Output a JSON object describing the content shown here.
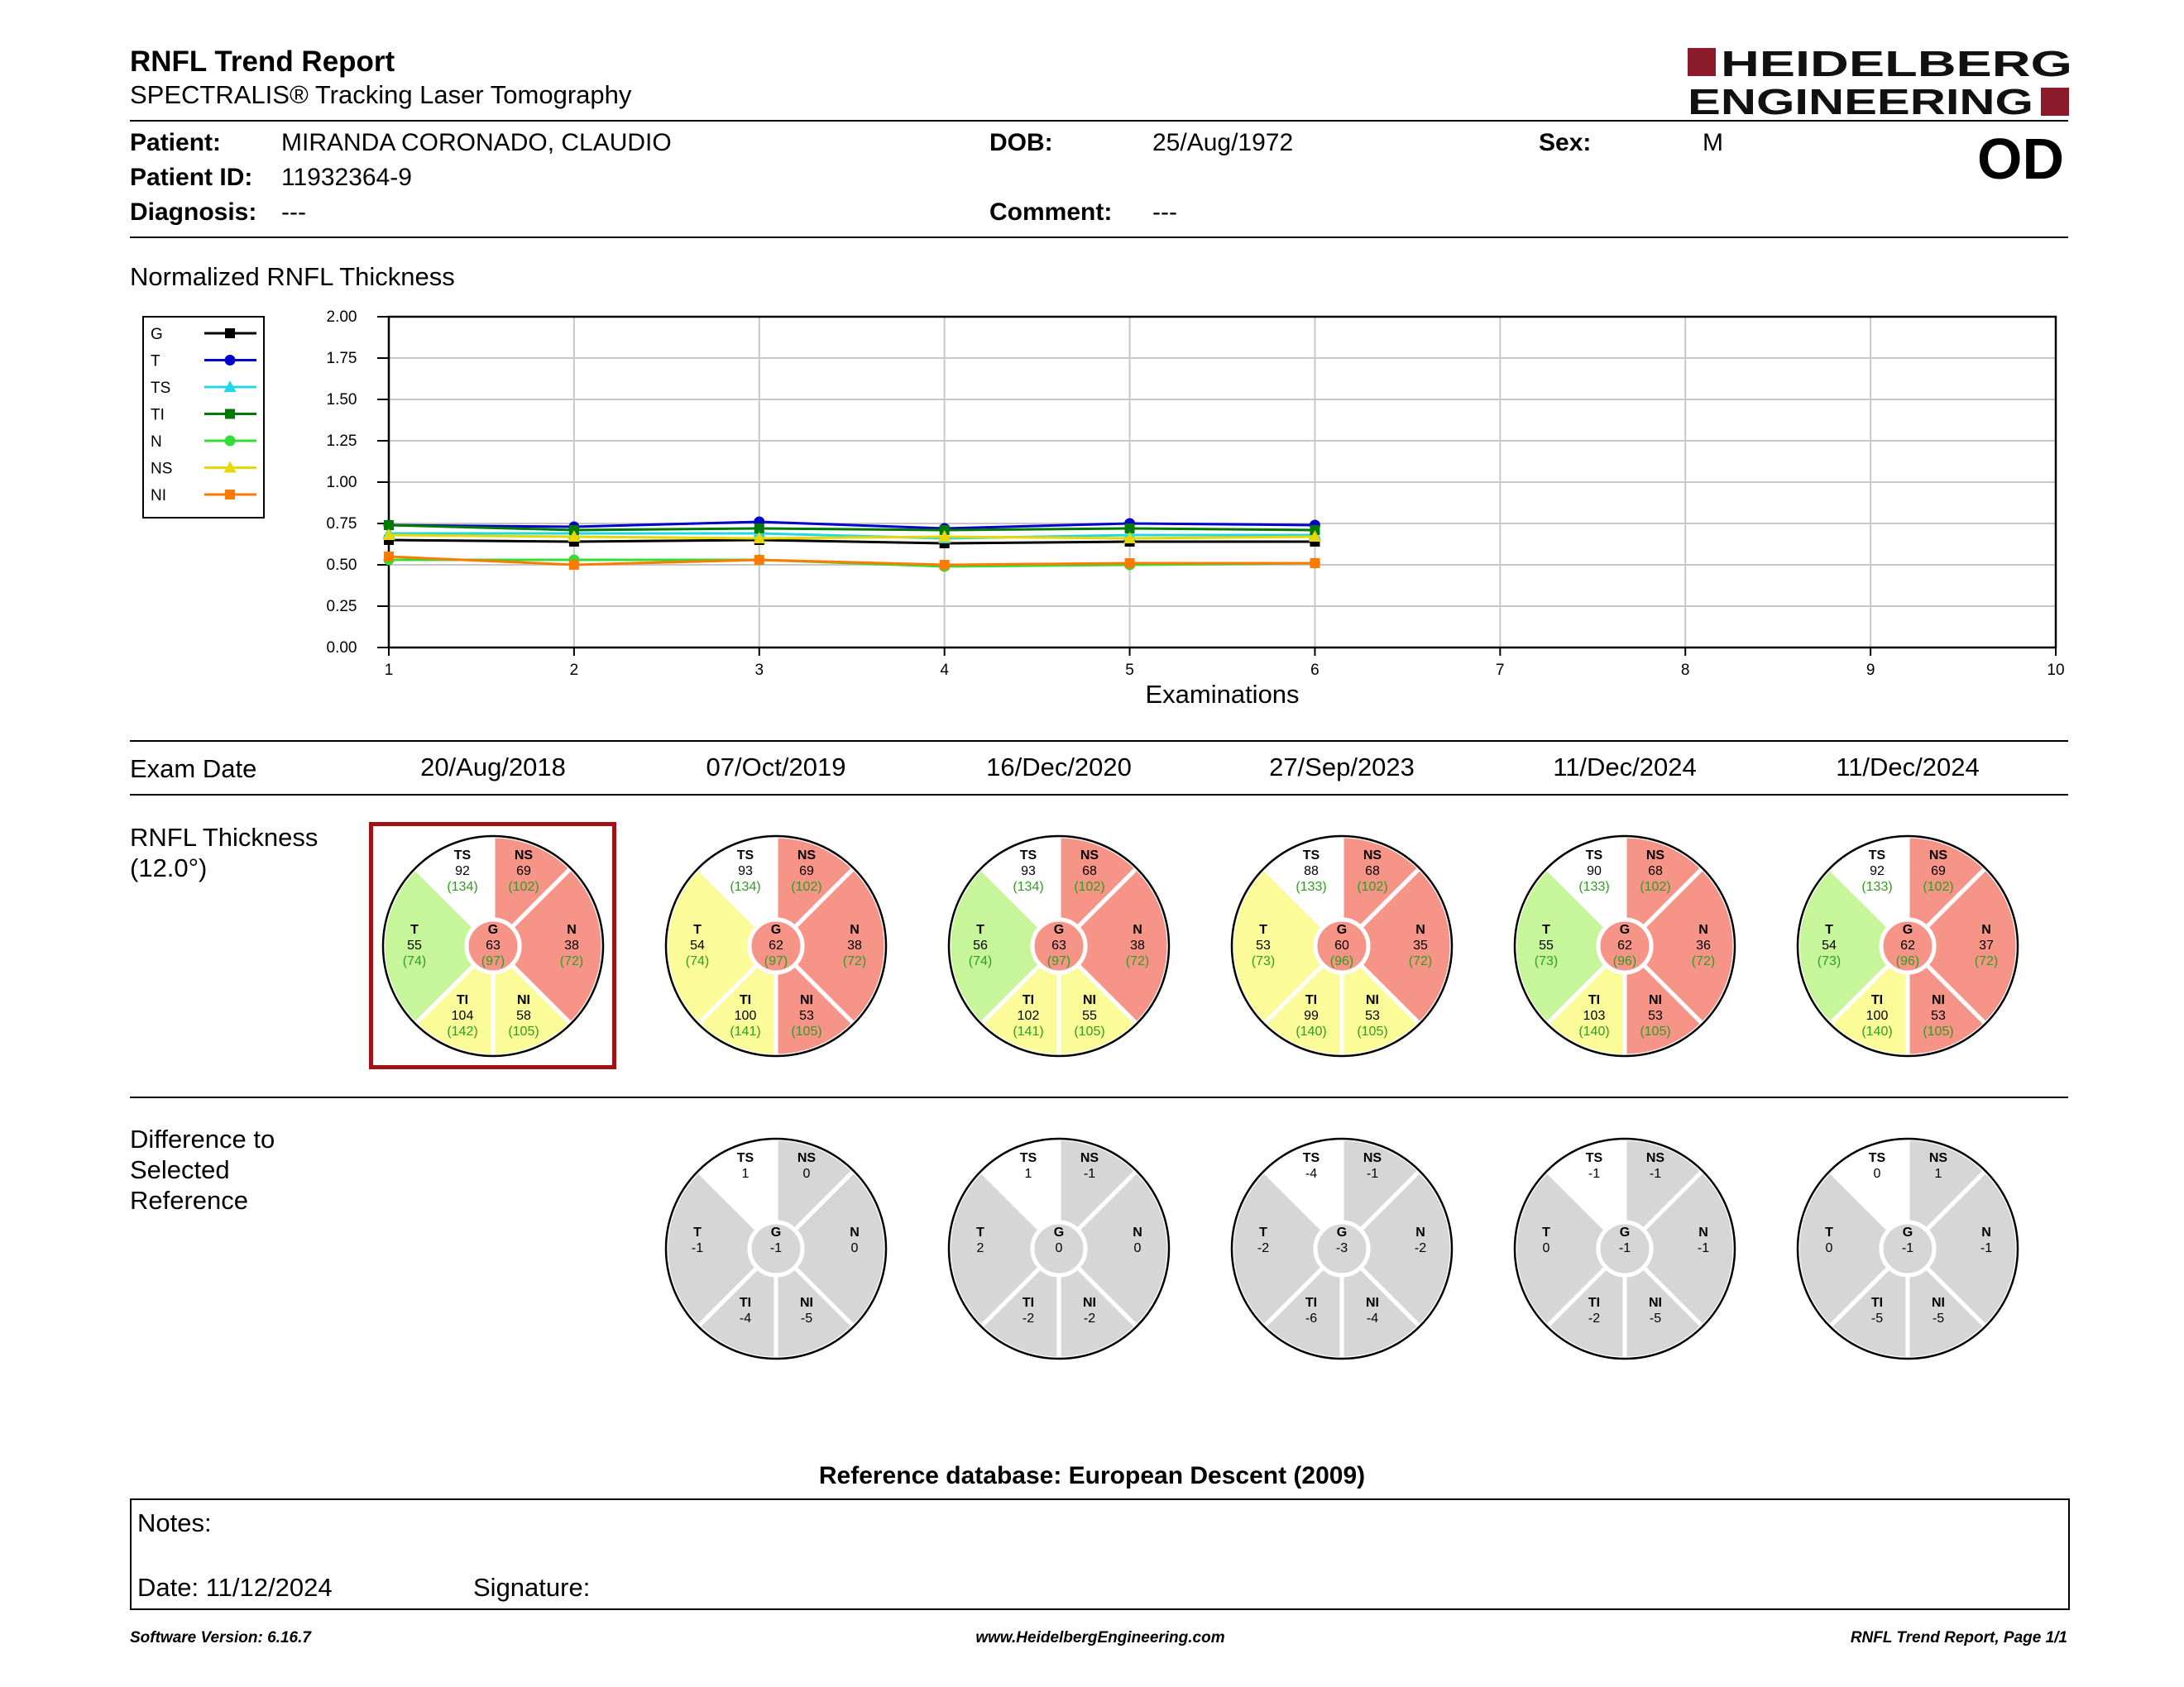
{
  "header": {
    "title": "RNFL Trend Report",
    "subtitle": "SPECTRALIS® Tracking Laser Tomography",
    "logo_line1": "HEIDELBERG",
    "logo_line2": "ENGINEERING",
    "eye": "OD"
  },
  "patient": {
    "patient_label": "Patient:",
    "patient_value": "MIRANDA CORONADO, CLAUDIO",
    "dob_label": "DOB:",
    "dob_value": "25/Aug/1972",
    "sex_label": "Sex:",
    "sex_value": "M",
    "id_label": "Patient ID:",
    "id_value": "11932364-9",
    "diagnosis_label": "Diagnosis:",
    "diagnosis_value": "---",
    "comment_label": "Comment:",
    "comment_value": "---"
  },
  "chart_data": {
    "type": "line",
    "title": "Normalized RNFL Thickness",
    "xlabel": "Examinations",
    "ylabel": "",
    "x": [
      1,
      2,
      3,
      4,
      5,
      6
    ],
    "xlim": [
      1,
      10
    ],
    "ylim": [
      0,
      2
    ],
    "x_ticks": [
      "1",
      "2",
      "3",
      "4",
      "5",
      "6",
      "7",
      "8",
      "9",
      "10"
    ],
    "y_ticks": [
      "0.00",
      "0.25",
      "0.50",
      "0.75",
      "1.00",
      "1.25",
      "1.50",
      "1.75",
      "2.00"
    ],
    "grid": true,
    "legend": "left",
    "series": [
      {
        "name": "G",
        "color": "#000000",
        "marker": "square",
        "values": [
          0.65,
          0.64,
          0.65,
          0.63,
          0.64,
          0.64
        ]
      },
      {
        "name": "T",
        "color": "#0000cc",
        "marker": "circle",
        "values": [
          0.74,
          0.73,
          0.76,
          0.72,
          0.75,
          0.74
        ]
      },
      {
        "name": "TS",
        "color": "#22d8e6",
        "marker": "triangle",
        "values": [
          0.69,
          0.69,
          0.69,
          0.66,
          0.68,
          0.68
        ]
      },
      {
        "name": "TI",
        "color": "#007a00",
        "marker": "square",
        "values": [
          0.74,
          0.71,
          0.72,
          0.71,
          0.72,
          0.71
        ]
      },
      {
        "name": "N",
        "color": "#33dd33",
        "marker": "circle",
        "values": [
          0.53,
          0.53,
          0.53,
          0.49,
          0.5,
          0.51
        ]
      },
      {
        "name": "NS",
        "color": "#e6d800",
        "marker": "triangle",
        "values": [
          0.68,
          0.67,
          0.66,
          0.67,
          0.66,
          0.67
        ]
      },
      {
        "name": "NI",
        "color": "#ff7b00",
        "marker": "square",
        "values": [
          0.55,
          0.5,
          0.53,
          0.5,
          0.51,
          0.51
        ]
      }
    ]
  },
  "exams": {
    "row_label": "Exam Date",
    "dates": [
      "20/Aug/2018",
      "07/Oct/2019",
      "16/Dec/2020",
      "27/Sep/2023",
      "11/Dec/2024",
      "11/Dec/2024"
    ]
  },
  "thickness": {
    "label_line1": "RNFL Thickness",
    "label_line2": "(12.0°)",
    "colors": {
      "within": "#c6f59a",
      "borderline": "#fbfb9a",
      "outside": "#f79488"
    },
    "wheels": [
      {
        "TS": "92",
        "TSr": "(134)",
        "TSc": "outside",
        "NS": "69",
        "NSr": "(102)",
        "NSc": "borderline",
        "T": "55",
        "Tr": "(74)",
        "Tc": "within",
        "G": "63",
        "Gr": "(97)",
        "Gc": "outside",
        "N": "38",
        "Nr": "(72)",
        "Nc": "outside",
        "TI": "104",
        "TIr": "(142)",
        "TIc": "borderline",
        "NI": "58",
        "NIr": "(105)",
        "NIc": "borderline"
      },
      {
        "TS": "93",
        "TSr": "(134)",
        "TSc": "outside",
        "NS": "69",
        "NSr": "(102)",
        "NSc": "borderline",
        "T": "54",
        "Tr": "(74)",
        "Tc": "borderline",
        "G": "62",
        "Gr": "(97)",
        "Gc": "outside",
        "N": "38",
        "Nr": "(72)",
        "Nc": "outside",
        "TI": "100",
        "TIr": "(141)",
        "TIc": "borderline",
        "NI": "53",
        "NIr": "(105)",
        "NIc": "outside"
      },
      {
        "TS": "93",
        "TSr": "(134)",
        "TSc": "outside",
        "NS": "68",
        "NSr": "(102)",
        "NSc": "borderline",
        "T": "56",
        "Tr": "(74)",
        "Tc": "within",
        "G": "63",
        "Gr": "(97)",
        "Gc": "outside",
        "N": "38",
        "Nr": "(72)",
        "Nc": "outside",
        "TI": "102",
        "TIr": "(141)",
        "TIc": "borderline",
        "NI": "55",
        "NIr": "(105)",
        "NIc": "borderline"
      },
      {
        "TS": "88",
        "TSr": "(133)",
        "TSc": "outside",
        "NS": "68",
        "NSr": "(102)",
        "NSc": "borderline",
        "T": "53",
        "Tr": "(73)",
        "Tc": "borderline",
        "G": "60",
        "Gr": "(96)",
        "Gc": "outside",
        "N": "35",
        "Nr": "(72)",
        "Nc": "outside",
        "TI": "99",
        "TIr": "(140)",
        "TIc": "borderline",
        "NI": "53",
        "NIr": "(105)",
        "NIc": "borderline"
      },
      {
        "TS": "90",
        "TSr": "(133)",
        "TSc": "outside",
        "NS": "68",
        "NSr": "(102)",
        "NSc": "borderline",
        "T": "55",
        "Tr": "(73)",
        "Tc": "within",
        "G": "62",
        "Gr": "(96)",
        "Gc": "outside",
        "N": "36",
        "Nr": "(72)",
        "Nc": "outside",
        "TI": "103",
        "TIr": "(140)",
        "TIc": "borderline",
        "NI": "53",
        "NIr": "(105)",
        "NIc": "outside"
      },
      {
        "TS": "92",
        "TSr": "(133)",
        "TSc": "outside",
        "NS": "69",
        "NSr": "(102)",
        "NSc": "borderline",
        "T": "54",
        "Tr": "(73)",
        "Tc": "within",
        "G": "62",
        "Gr": "(96)",
        "Gc": "outside",
        "N": "37",
        "Nr": "(72)",
        "Nc": "outside",
        "TI": "100",
        "TIr": "(140)",
        "TIc": "borderline",
        "NI": "53",
        "NIr": "(105)",
        "NIc": "outside"
      }
    ]
  },
  "difference": {
    "label_line1": "Difference to",
    "label_line2": "Selected",
    "label_line3": "Reference",
    "wheels": [
      {
        "TS": "1",
        "NS": "0",
        "T": "-1",
        "G": "-1",
        "N": "0",
        "TI": "-4",
        "NI": "-5"
      },
      {
        "TS": "1",
        "NS": "-1",
        "T": "2",
        "G": "0",
        "N": "0",
        "TI": "-2",
        "NI": "-2"
      },
      {
        "TS": "-4",
        "NS": "-1",
        "T": "-2",
        "G": "-3",
        "N": "-2",
        "TI": "-6",
        "NI": "-4"
      },
      {
        "TS": "-1",
        "NS": "-1",
        "T": "0",
        "G": "-1",
        "N": "-1",
        "TI": "-2",
        "NI": "-5"
      },
      {
        "TS": "0",
        "NS": "1",
        "T": "0",
        "G": "-1",
        "N": "-1",
        "TI": "-5",
        "NI": "-5"
      }
    ]
  },
  "reference_db": "Reference database: European Descent (2009)",
  "notes": {
    "notes_label": "Notes:",
    "date_label": "Date: 11/12/2024",
    "signature_label": "Signature:"
  },
  "footer": {
    "software": "Software Version: 6.16.7",
    "website": "www.HeidelbergEngineering.com",
    "page": "RNFL Trend Report, Page 1/1"
  }
}
